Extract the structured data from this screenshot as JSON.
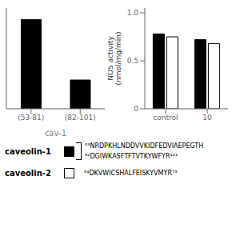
{
  "chart_data": [
    {
      "type": "bar",
      "categories": [
        "(53-81)",
        "(82-101)"
      ],
      "values": [
        0.93,
        0.3
      ],
      "colors": [
        "#000000",
        "#000000"
      ],
      "xlabel": "cav-1",
      "ylim": [
        0,
        1.05
      ],
      "tick_labels": "x"
    },
    {
      "type": "bar",
      "categories": [
        "control",
        "10"
      ],
      "series": [
        {
          "name": "caveolin-1",
          "color": "#000000",
          "values": [
            0.78,
            0.72
          ]
        },
        {
          "name": "caveolin-2",
          "color": "#ffffff",
          "values": [
            0.75,
            0.68
          ]
        }
      ],
      "ylabel": "NOS activity\n(nmol/mg/min)",
      "ylim": [
        0,
        1.05
      ],
      "yticks": [
        0,
        0.5,
        {
          "value": 1.0,
          "label": "1.0"
        }
      ],
      "legend": "bottom",
      "annotations": [
        "⁵³NRDPKHLNDDVVKIDFEDVIAEPEGTH",
        "⁸²DGIWKASFTFTVTKYWFYR¹⁰¹",
        "⁵⁴DKVWICSHALFEISKYVMYR⁷³"
      ]
    }
  ]
}
